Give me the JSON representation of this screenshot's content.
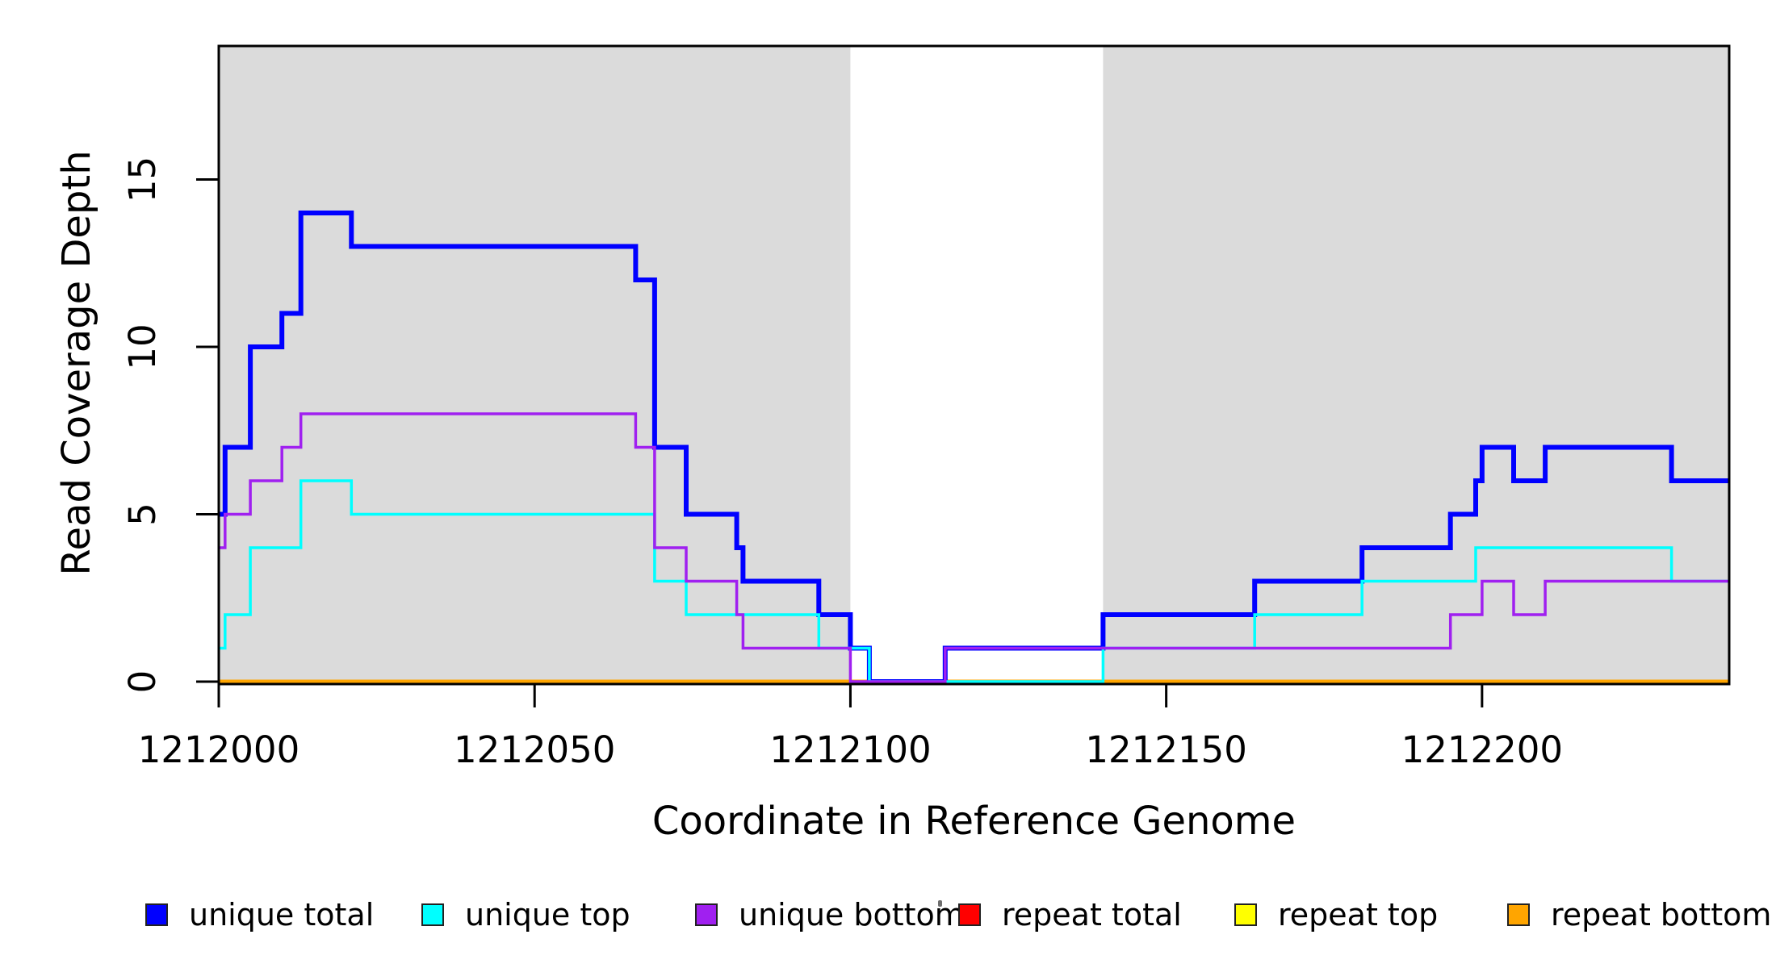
{
  "chart_data": {
    "type": "line",
    "subtype": "step-coverage",
    "title": "",
    "xlabel": "Coordinate in Reference Genome",
    "ylabel": "Read Coverage Depth",
    "x_base": 1212000,
    "xlim": [
      1212000,
      1212239
    ],
    "ylim": [
      0,
      19
    ],
    "x_ticks": [
      1212000,
      1212050,
      1212100,
      1212150,
      1212200
    ],
    "y_ticks": [
      0,
      5,
      10,
      15
    ],
    "grid": false,
    "background_color": "#ffffff",
    "shade_color": "#dbdbdb",
    "shaded_regions": [
      [
        1212000,
        1212100
      ],
      [
        1212140,
        1212239
      ]
    ],
    "series": [
      {
        "name": "repeat total",
        "color": "#ff0000",
        "width": 3.5,
        "segments": [
          [
            0,
            239,
            0
          ]
        ]
      },
      {
        "name": "repeat top",
        "color": "#ffff00",
        "width": 3.5,
        "segments": [
          [
            0,
            239,
            0
          ]
        ]
      },
      {
        "name": "repeat bottom",
        "color": "#ffa500",
        "width": 5,
        "segments": [
          [
            0,
            239,
            0
          ]
        ]
      },
      {
        "name": "unique total",
        "color": "#0000ff",
        "width": 6,
        "segments": [
          [
            0,
            1,
            5
          ],
          [
            1,
            5,
            7
          ],
          [
            5,
            10,
            10
          ],
          [
            10,
            13,
            11
          ],
          [
            13,
            21,
            14
          ],
          [
            21,
            66,
            13
          ],
          [
            66,
            69,
            12
          ],
          [
            69,
            74,
            7
          ],
          [
            74,
            82,
            5
          ],
          [
            82,
            83,
            4
          ],
          [
            83,
            95,
            3
          ],
          [
            95,
            100,
            2
          ],
          [
            100,
            103,
            1
          ],
          [
            103,
            115,
            0
          ],
          [
            115,
            140,
            1
          ],
          [
            140,
            164,
            2
          ],
          [
            164,
            181,
            3
          ],
          [
            181,
            195,
            4
          ],
          [
            195,
            199,
            5
          ],
          [
            199,
            200,
            6
          ],
          [
            200,
            205,
            7
          ],
          [
            205,
            210,
            6
          ],
          [
            210,
            230,
            7
          ],
          [
            230,
            239,
            6
          ]
        ]
      },
      {
        "name": "unique top",
        "color": "#00ffff",
        "width": 3.5,
        "segments": [
          [
            0,
            1,
            1
          ],
          [
            1,
            5,
            2
          ],
          [
            5,
            13,
            4
          ],
          [
            13,
            21,
            6
          ],
          [
            21,
            69,
            5
          ],
          [
            69,
            74,
            3
          ],
          [
            74,
            95,
            2
          ],
          [
            95,
            103,
            1
          ],
          [
            103,
            140,
            0
          ],
          [
            140,
            164,
            1
          ],
          [
            164,
            181,
            2
          ],
          [
            181,
            199,
            3
          ],
          [
            199,
            230,
            4
          ],
          [
            230,
            239,
            3
          ]
        ]
      },
      {
        "name": "unique bottom",
        "color": "#a020f0",
        "width": 3.5,
        "segments": [
          [
            0,
            1,
            4
          ],
          [
            1,
            5,
            5
          ],
          [
            5,
            10,
            6
          ],
          [
            10,
            13,
            7
          ],
          [
            13,
            66,
            8
          ],
          [
            66,
            69,
            7
          ],
          [
            69,
            74,
            4
          ],
          [
            74,
            82,
            3
          ],
          [
            82,
            83,
            2
          ],
          [
            83,
            100,
            1
          ],
          [
            100,
            115,
            0
          ],
          [
            115,
            195,
            1
          ],
          [
            195,
            200,
            2
          ],
          [
            200,
            205,
            3
          ],
          [
            205,
            210,
            2
          ],
          [
            210,
            239,
            3
          ]
        ]
      }
    ],
    "legend": [
      {
        "label": "unique total",
        "color": "#0000ff"
      },
      {
        "label": "unique top",
        "color": "#00ffff"
      },
      {
        "label": "unique bottom",
        "color": "#a020f0"
      },
      {
        "label": "repeat total",
        "color": "#ff0000"
      },
      {
        "label": "repeat top",
        "color": "#ffff00"
      },
      {
        "label": "repeat bottom",
        "color": "#ffa500"
      }
    ],
    "legend_position": "bottom"
  }
}
